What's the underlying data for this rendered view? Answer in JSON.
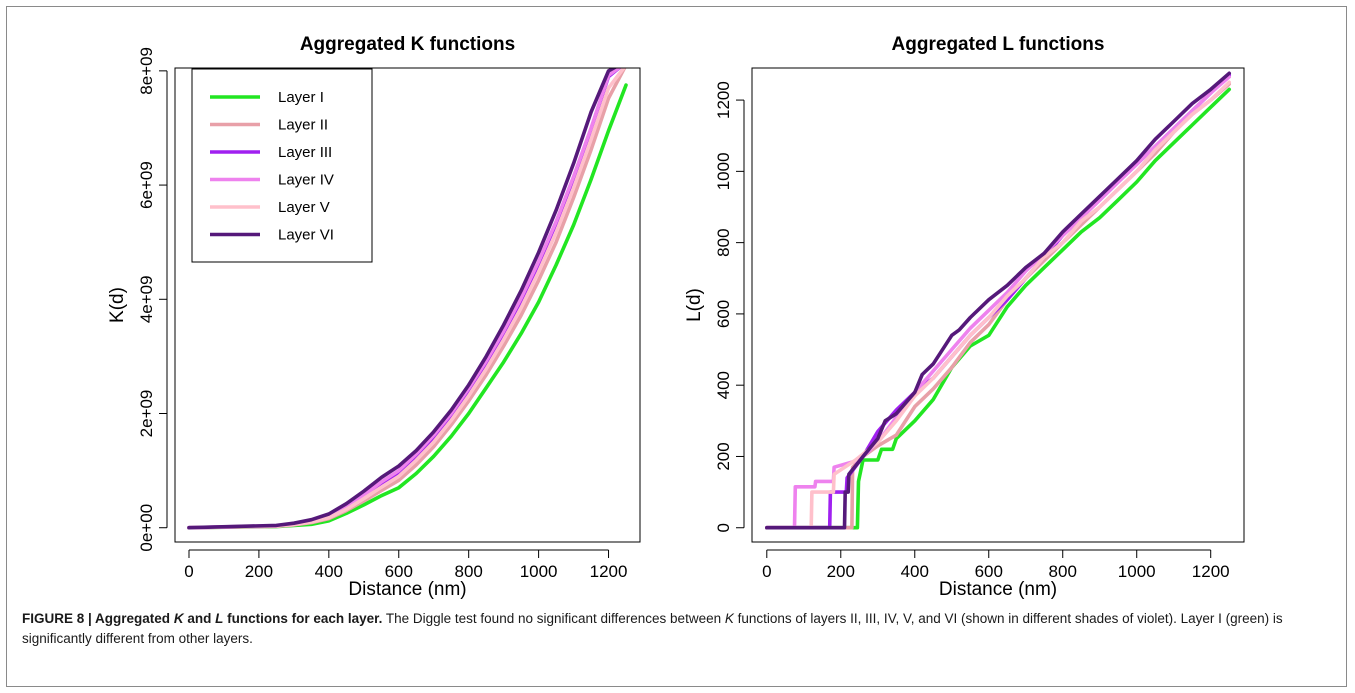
{
  "chart_data": [
    {
      "type": "line",
      "title": "Aggregated K functions",
      "xlabel": "Distance (nm)",
      "ylabel": "K(d)",
      "xlim": [
        -40,
        1290
      ],
      "ylim": [
        -250000000,
        8050000000
      ],
      "xticks": [
        0,
        200,
        400,
        600,
        800,
        1000,
        1200
      ],
      "xticklabels": [
        "0",
        "200",
        "400",
        "600",
        "800",
        "1000",
        "1200"
      ],
      "yticks": [
        0,
        2000000000,
        4000000000,
        6000000000,
        8000000000
      ],
      "yticklabels": [
        "0e+00",
        "2e+09",
        "4e+09",
        "6e+09",
        "8e+09"
      ],
      "grid": false,
      "legend_position": "top-left",
      "series": [
        {
          "name": "Layer I",
          "color": "#22e622",
          "x": [
            0,
            250,
            300,
            350,
            400,
            450,
            500,
            550,
            600,
            650,
            700,
            750,
            800,
            850,
            900,
            950,
            1000,
            1050,
            1100,
            1150,
            1200,
            1250
          ],
          "y": [
            0,
            20000000,
            40000000,
            60000000,
            120000000,
            250000000,
            400000000,
            560000000,
            700000000,
            950000000,
            1250000000,
            1600000000,
            2000000000,
            2450000000,
            2900000000,
            3400000000,
            3950000000,
            4600000000,
            5300000000,
            6100000000,
            6950000000,
            7750000000
          ]
        },
        {
          "name": "Layer II",
          "color": "#e8a0a8",
          "x": [
            0,
            250,
            300,
            350,
            400,
            450,
            500,
            550,
            600,
            650,
            700,
            750,
            800,
            850,
            900,
            950,
            1000,
            1050,
            1100,
            1150,
            1200,
            1250
          ],
          "y": [
            0,
            25000000,
            50000000,
            90000000,
            160000000,
            300000000,
            470000000,
            650000000,
            830000000,
            1100000000,
            1420000000,
            1800000000,
            2220000000,
            2680000000,
            3180000000,
            3720000000,
            4330000000,
            5000000000,
            5780000000,
            6620000000,
            7520000000,
            8100000000
          ]
        },
        {
          "name": "Layer III",
          "color": "#a020f0",
          "x": [
            0,
            250,
            300,
            350,
            400,
            450,
            500,
            550,
            600,
            650,
            700,
            750,
            800,
            850,
            900,
            950,
            1000,
            1050,
            1100,
            1150,
            1200,
            1240
          ],
          "y": [
            0,
            30000000,
            60000000,
            110000000,
            190000000,
            340000000,
            540000000,
            760000000,
            960000000,
            1250000000,
            1580000000,
            1960000000,
            2400000000,
            2880000000,
            3400000000,
            3980000000,
            4620000000,
            5330000000,
            6120000000,
            6980000000,
            7900000000,
            8100000000
          ]
        },
        {
          "name": "Layer IV",
          "color": "#ee82ee",
          "x": [
            0,
            250,
            300,
            350,
            400,
            450,
            500,
            550,
            600,
            650,
            700,
            750,
            800,
            850,
            900,
            950,
            1000,
            1050,
            1100,
            1150,
            1200,
            1240
          ],
          "y": [
            0,
            35000000,
            65000000,
            120000000,
            200000000,
            360000000,
            570000000,
            800000000,
            1000000000,
            1290000000,
            1620000000,
            2000000000,
            2440000000,
            2920000000,
            3440000000,
            4020000000,
            4660000000,
            5360000000,
            6150000000,
            7000000000,
            7920000000,
            8100000000
          ]
        },
        {
          "name": "Layer V",
          "color": "#ffc0cb",
          "x": [
            0,
            250,
            300,
            350,
            400,
            450,
            500,
            550,
            600,
            650,
            700,
            750,
            800,
            850,
            900,
            950,
            1000,
            1050,
            1100,
            1150,
            1200,
            1250
          ],
          "y": [
            0,
            28000000,
            55000000,
            100000000,
            175000000,
            320000000,
            510000000,
            710000000,
            900000000,
            1180000000,
            1500000000,
            1880000000,
            2310000000,
            2780000000,
            3290000000,
            3850000000,
            4480000000,
            5170000000,
            5950000000,
            6800000000,
            7700000000,
            8100000000
          ]
        },
        {
          "name": "Layer VI",
          "color": "#55197a",
          "x": [
            0,
            250,
            300,
            350,
            400,
            450,
            500,
            550,
            600,
            650,
            700,
            750,
            800,
            850,
            900,
            950,
            1000,
            1050,
            1100,
            1150,
            1200,
            1230
          ],
          "y": [
            0,
            40000000,
            80000000,
            140000000,
            240000000,
            420000000,
            640000000,
            880000000,
            1080000000,
            1350000000,
            1680000000,
            2060000000,
            2500000000,
            3000000000,
            3550000000,
            4150000000,
            4820000000,
            5560000000,
            6380000000,
            7280000000,
            8000000000,
            8100000000
          ]
        }
      ]
    },
    {
      "type": "line",
      "title": "Aggregated L functions",
      "xlabel": "Distance (nm)",
      "ylabel": "L(d)",
      "xlim": [
        -40,
        1290
      ],
      "ylim": [
        -40,
        1290
      ],
      "xticks": [
        0,
        200,
        400,
        600,
        800,
        1000,
        1200
      ],
      "xticklabels": [
        "0",
        "200",
        "400",
        "600",
        "800",
        "1000",
        "1200"
      ],
      "yticks": [
        0,
        200,
        400,
        600,
        800,
        1000,
        1200
      ],
      "yticklabels": [
        "0",
        "200",
        "400",
        "600",
        "800",
        "1000",
        "1200"
      ],
      "grid": false,
      "series": [
        {
          "name": "Layer I",
          "color": "#22e622",
          "x": [
            0,
            245,
            248,
            260,
            300,
            310,
            340,
            350,
            400,
            450,
            500,
            550,
            600,
            650,
            700,
            750,
            800,
            850,
            900,
            950,
            1000,
            1050,
            1100,
            1150,
            1200,
            1250
          ],
          "y": [
            0,
            0,
            130,
            190,
            190,
            220,
            220,
            250,
            300,
            360,
            450,
            510,
            540,
            620,
            680,
            730,
            780,
            830,
            870,
            920,
            970,
            1030,
            1080,
            1130,
            1180,
            1230
          ]
        },
        {
          "name": "Layer II",
          "color": "#e8a0a8",
          "x": [
            0,
            230,
            232,
            260,
            300,
            350,
            400,
            450,
            500,
            550,
            600,
            650,
            700,
            750,
            800,
            850,
            900,
            950,
            1000,
            1050,
            1100,
            1150,
            1200,
            1250
          ],
          "y": [
            0,
            0,
            170,
            200,
            230,
            260,
            340,
            390,
            450,
            520,
            570,
            640,
            700,
            750,
            800,
            850,
            900,
            950,
            1000,
            1050,
            1110,
            1160,
            1200,
            1245
          ]
        },
        {
          "name": "Layer III",
          "color": "#a020f0",
          "x": [
            0,
            170,
            172,
            215,
            217,
            260,
            300,
            350,
            400,
            450,
            500,
            550,
            600,
            650,
            700,
            750,
            800,
            850,
            900,
            950,
            1000,
            1050,
            1100,
            1150,
            1200,
            1250
          ],
          "y": [
            0,
            0,
            100,
            100,
            140,
            200,
            270,
            330,
            380,
            420,
            480,
            540,
            590,
            640,
            700,
            760,
            820,
            870,
            920,
            970,
            1020,
            1070,
            1120,
            1170,
            1220,
            1270
          ]
        },
        {
          "name": "Layer IV",
          "color": "#ee82ee",
          "x": [
            0,
            75,
            77,
            130,
            132,
            180,
            182,
            250,
            300,
            350,
            400,
            450,
            500,
            550,
            600,
            650,
            700,
            750,
            800,
            850,
            900,
            950,
            1000,
            1050,
            1100,
            1150,
            1200,
            1250
          ],
          "y": [
            0,
            0,
            115,
            115,
            130,
            130,
            170,
            190,
            240,
            310,
            380,
            440,
            500,
            560,
            610,
            660,
            720,
            770,
            820,
            870,
            920,
            970,
            1020,
            1070,
            1120,
            1170,
            1220,
            1265
          ]
        },
        {
          "name": "Layer V",
          "color": "#ffc0cb",
          "x": [
            0,
            120,
            122,
            180,
            182,
            240,
            300,
            350,
            400,
            450,
            500,
            550,
            600,
            650,
            700,
            750,
            800,
            850,
            900,
            950,
            1000,
            1050,
            1100,
            1150,
            1200,
            1250
          ],
          "y": [
            0,
            0,
            100,
            100,
            150,
            190,
            240,
            300,
            370,
            420,
            480,
            540,
            590,
            650,
            700,
            760,
            800,
            860,
            900,
            950,
            1000,
            1060,
            1110,
            1160,
            1200,
            1250
          ]
        },
        {
          "name": "Layer VI",
          "color": "#55197a",
          "x": [
            0,
            210,
            212,
            220,
            222,
            260,
            300,
            320,
            350,
            400,
            420,
            450,
            500,
            520,
            550,
            600,
            650,
            700,
            750,
            800,
            850,
            900,
            950,
            1000,
            1050,
            1100,
            1150,
            1200,
            1250
          ],
          "y": [
            0,
            0,
            100,
            100,
            150,
            200,
            250,
            300,
            320,
            380,
            430,
            460,
            540,
            555,
            590,
            640,
            680,
            730,
            770,
            830,
            880,
            930,
            980,
            1030,
            1090,
            1140,
            1190,
            1230,
            1275
          ]
        }
      ]
    }
  ],
  "caption": {
    "figure_label": "FIGURE 8 | ",
    "title_a": "Aggregated ",
    "title_k": "K",
    "title_and": " and ",
    "title_l": "L",
    "title_b": " functions for each layer.",
    "text_a": " The Diggle test found no significant differences between ",
    "text_k": "K",
    "text_b": " functions of layers II, III, IV, V, and VI (shown in different shades of violet). Layer I (green) is significantly different from other layers."
  }
}
